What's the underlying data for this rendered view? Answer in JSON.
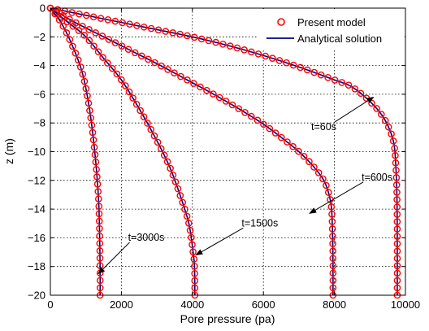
{
  "chart_data": {
    "type": "line",
    "title": "",
    "xlabel": "Pore pressure (pa)",
    "ylabel": "z  (m)",
    "xlim": [
      0,
      10000
    ],
    "ylim": [
      -20,
      0
    ],
    "grid": true,
    "legend_position": "top-right",
    "x_ticks": [
      "0",
      "2000",
      "4000",
      "6000",
      "8000",
      "10000"
    ],
    "y_ticks": [
      "0",
      "−2",
      "−4",
      "−6",
      "−8",
      "−10",
      "−12",
      "−14",
      "−16",
      "−18",
      "−20"
    ],
    "legend": {
      "present": "Present model",
      "analytical": "Analytical solution"
    },
    "colors": {
      "present": "#ff0000",
      "analytical": "#000080",
      "grid": "#000000"
    },
    "series": [
      {
        "label": "t=60s",
        "points": [
          [
            0,
            0
          ],
          [
            1000,
            -0.5
          ],
          [
            2000,
            -1
          ],
          [
            3000,
            -1.5
          ],
          [
            4000,
            -2
          ],
          [
            5000,
            -2.6
          ],
          [
            6000,
            -3.3
          ],
          [
            7000,
            -4.1
          ],
          [
            8000,
            -5.0
          ],
          [
            8500,
            -5.5
          ],
          [
            9000,
            -6.5
          ],
          [
            9350,
            -7.5
          ],
          [
            9560,
            -8.5
          ],
          [
            9680,
            -9.5
          ],
          [
            9730,
            -11
          ],
          [
            9760,
            -13
          ],
          [
            9770,
            -16
          ],
          [
            9770,
            -20
          ]
        ]
      },
      {
        "label": "t=600s",
        "points": [
          [
            0,
            0
          ],
          [
            700,
            -1
          ],
          [
            1500,
            -2
          ],
          [
            2300,
            -3
          ],
          [
            3100,
            -4
          ],
          [
            3850,
            -5
          ],
          [
            4600,
            -6
          ],
          [
            5300,
            -7
          ],
          [
            5950,
            -8
          ],
          [
            6500,
            -9
          ],
          [
            7000,
            -10
          ],
          [
            7400,
            -11
          ],
          [
            7700,
            -12
          ],
          [
            7850,
            -13
          ],
          [
            7920,
            -14
          ],
          [
            7950,
            -16
          ],
          [
            7960,
            -18
          ],
          [
            7960,
            -20
          ]
        ]
      },
      {
        "label": "t=1500s",
        "points": [
          [
            0,
            0
          ],
          [
            500,
            -1
          ],
          [
            1000,
            -2
          ],
          [
            1500,
            -3.5
          ],
          [
            2000,
            -5
          ],
          [
            2500,
            -7
          ],
          [
            2950,
            -9
          ],
          [
            3350,
            -11
          ],
          [
            3650,
            -13
          ],
          [
            3900,
            -15
          ],
          [
            4020,
            -17
          ],
          [
            4060,
            -18
          ],
          [
            4070,
            -20
          ]
        ]
      },
      {
        "label": "t=3000s",
        "points": [
          [
            0,
            0
          ],
          [
            300,
            -1
          ],
          [
            600,
            -2.5
          ],
          [
            900,
            -4.5
          ],
          [
            1100,
            -7
          ],
          [
            1250,
            -10
          ],
          [
            1350,
            -13
          ],
          [
            1380,
            -15
          ],
          [
            1400,
            -18
          ],
          [
            1400,
            -20
          ]
        ]
      }
    ],
    "annotations": [
      {
        "text": "t=60s",
        "x": 7700,
        "y": -8.5,
        "target_x": 9100,
        "target_y": -6.2
      },
      {
        "text": "t=600s",
        "x": 9200,
        "y": -12.0,
        "target_x": 7300,
        "target_y": -14.3
      },
      {
        "text": "t=1500s",
        "x": 5900,
        "y": -15.2,
        "target_x": 4100,
        "target_y": -17.2
      },
      {
        "text": "t=3000s",
        "x": 2700,
        "y": -16.2,
        "target_x": 1350,
        "target_y": -18.5
      }
    ]
  }
}
